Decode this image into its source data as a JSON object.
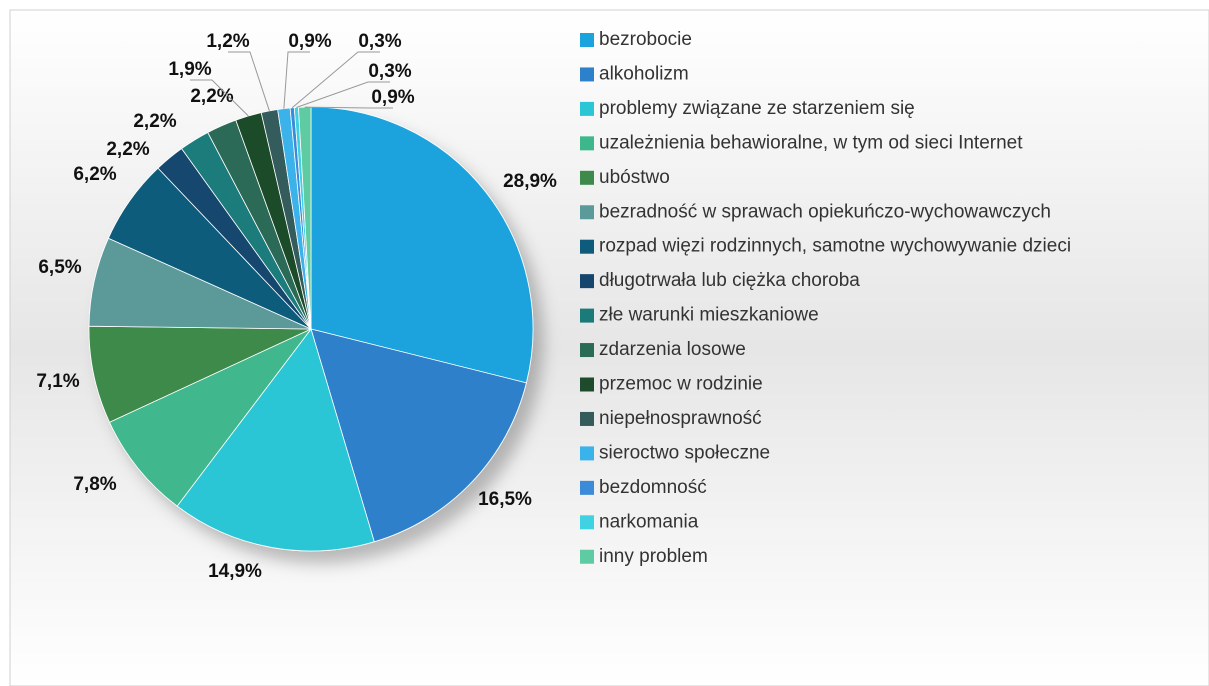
{
  "chart_data": {
    "type": "pie",
    "categories": [
      "bezrobocie",
      "alkoholizm",
      "problemy związane ze starzeniem się",
      "uzależnienia behawioralne, w tym od sieci Internet",
      "ubóstwo",
      "bezradność w sprawach opiekuńczo-wychowawczych",
      "rozpad więzi rodzinnych, samotne wychowywanie dzieci",
      "długotrwała lub ciężka choroba",
      "złe warunki mieszkaniowe",
      "zdarzenia losowe",
      "przemoc w rodzinie",
      "niepełnosprawność",
      "sieroctwo społeczne",
      "bezdomność",
      "narkomania",
      "inny problem"
    ],
    "values": [
      28.9,
      16.5,
      14.9,
      7.8,
      7.1,
      6.5,
      6.2,
      2.2,
      2.2,
      2.2,
      1.9,
      1.2,
      0.9,
      0.3,
      0.3,
      0.9
    ],
    "value_labels": [
      "28,9%",
      "16,5%",
      "14,9%",
      "7,8%",
      "7,1%",
      "6,5%",
      "6,2%",
      "2,2%",
      "2,2%",
      "2,2%",
      "1,9%",
      "1,2%",
      "0,9%",
      "0,3%",
      "0,3%",
      "0,9%"
    ],
    "colors": [
      "#1ba3de",
      "#2d80ca",
      "#2bc6d6",
      "#3fb78c",
      "#3d8a4b",
      "#5b9a9a",
      "#0e5b7c",
      "#14466e",
      "#1b7b7b",
      "#2a6b56",
      "#1e4b2b",
      "#355b5b",
      "#3ab2ea",
      "#3b8bd8",
      "#3ed2e2",
      "#5ecba2"
    ],
    "legend": "right"
  }
}
